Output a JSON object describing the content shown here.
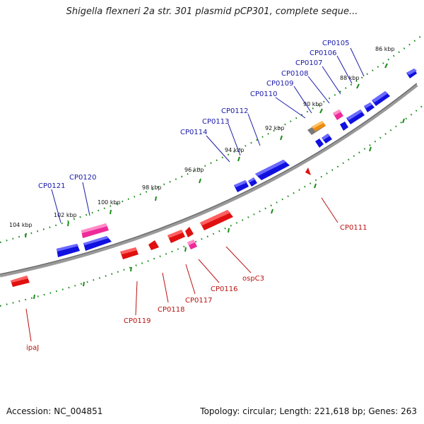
{
  "title": "Shigella flexneri 2a str. 301 plasmid pCP301, complete seque...",
  "footer": {
    "accession": "Accession: NC_004851",
    "summary": "Topology: circular; Length: 221,618 bp; Genes: 263"
  },
  "colors": {
    "forward_gene": "#1010e0",
    "reverse_gene": "#e01010",
    "pseudo_gene": "#ee2a9a",
    "other_gene": "#ee8c10",
    "backbone": "#8a8a8a",
    "ticks": "#1c8c1c",
    "label_forward": "#1a1aaa",
    "label_reverse": "#bb1111"
  },
  "kbp_labels": [
    "86 kbp",
    "88 kbp",
    "90 kbp",
    "92 kbp",
    "94 kbp",
    "96 kbp",
    "98 kbp",
    "100 kbp",
    "102 kbp",
    "104 kbp"
  ],
  "forward_gene_labels": [
    "CP0105",
    "CP0106",
    "CP0107",
    "CP0108",
    "CP0109",
    "CP0110",
    "CP0112",
    "CP0113",
    "CP0114",
    "CP0120",
    "CP0121"
  ],
  "reverse_gene_labels": [
    "CP0111",
    "ospC3",
    "CP0116",
    "CP0117",
    "CP0118",
    "CP0119",
    "ipaJ"
  ]
}
